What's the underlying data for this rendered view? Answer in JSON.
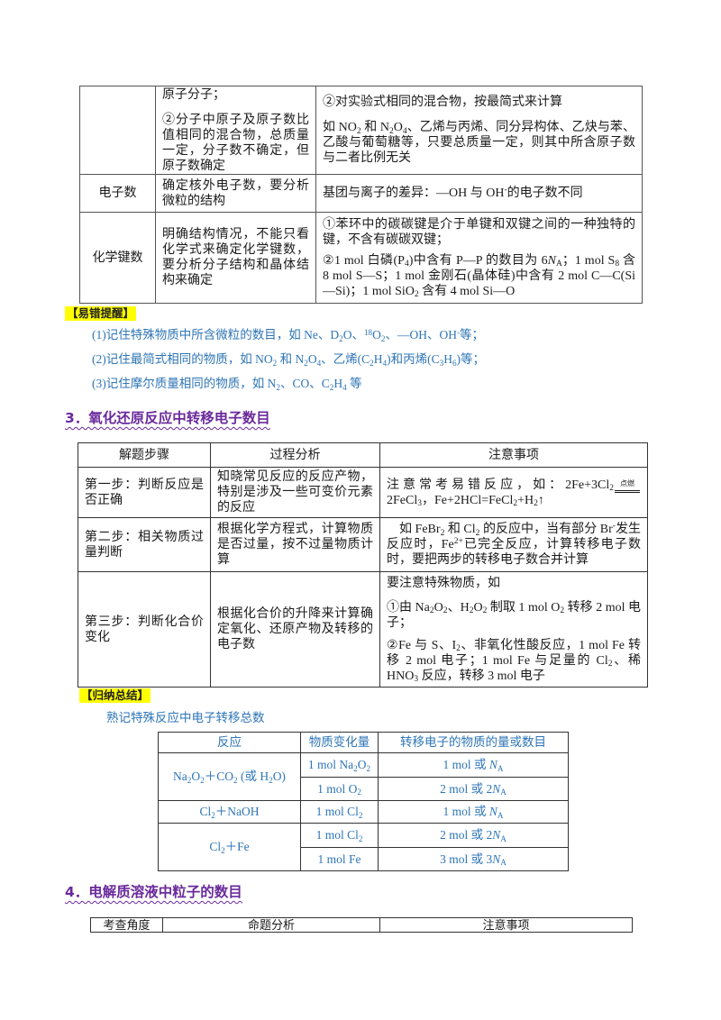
{
  "colors": {
    "heading_purple": "#6A2A9C",
    "note_blue": "#2E75B6",
    "label_yellow": "#FFFF00"
  },
  "table1": {
    "row_atoms": {
      "analysis_p1": "原子分子；",
      "analysis_p2": "②分子中原子及原子数比值相同的混合物，总质量一定，分子数不确定，但原子数确定",
      "notes_p1": "②对实验式相同的混合物，按最简式来计算",
      "notes_p2": [
        "如 NO",
        {
          "sub": "2"
        },
        " 和 N",
        {
          "sub": "2"
        },
        "O",
        {
          "sub": "4"
        },
        "、乙烯与丙烯、同分异构体、乙炔与苯、乙酸与葡萄糖等，只要总质量一定，则其中所含原子数与二者比例无关"
      ]
    },
    "row_electrons": {
      "label": "电子数",
      "analysis": "确定核外电子数，要分析微粒的结构",
      "notes": [
        "基团与离子的差异：—OH 与 OH",
        {
          "sup": "-"
        },
        "的电子数不同"
      ]
    },
    "row_bonds": {
      "label": "化学键数",
      "analysis": "明确结构情况，不能只看化学式来确定化学键数，要分析分子结构和晶体结构来确定",
      "notes_p1": "①苯环中的碳碳键是介于单键和双键之间的一种独特的键，不含有碳碳双键；",
      "notes_p2": [
        "②1 mol 白磷(P",
        {
          "sub": "4"
        },
        ")中含有 P—P 的数目为 6",
        {
          "i": "N"
        },
        {
          "sub": "A"
        },
        "；1 mol S",
        {
          "sub": "8"
        },
        " 含 8 mol S—S；1 mol 金刚石(晶体硅)中含有 2 mol C—C(Si—Si)；1 mol SiO",
        {
          "sub": "2"
        },
        " 含有 4 mol Si—O"
      ]
    }
  },
  "mistake_tips": {
    "label": "【易错提醒】",
    "items": [
      [
        "(1)记住特殊物质中所含微粒的数目，如 Ne、D",
        {
          "sub": "2"
        },
        "O、",
        {
          "sup": "18"
        },
        "O",
        {
          "sub": "2"
        },
        "、—OH、OH",
        {
          "sup": "-"
        },
        "等；"
      ],
      [
        "(2)记住最简式相同的物质，如 NO",
        {
          "sub": "2"
        },
        " 和 N",
        {
          "sub": "2"
        },
        "O",
        {
          "sub": "4"
        },
        "、乙烯(C",
        {
          "sub": "2"
        },
        "H",
        {
          "sub": "4"
        },
        ")和丙烯(C",
        {
          "sub": "3"
        },
        "H",
        {
          "sub": "6"
        },
        ")等；"
      ],
      [
        "(3)记住摩尔质量相同的物质，如 N",
        {
          "sub": "2"
        },
        "、CO、C",
        {
          "sub": "2"
        },
        "H",
        {
          "sub": "4"
        },
        " 等"
      ]
    ]
  },
  "section3": {
    "title": "3．氧化还原反应中转移电子数目",
    "headers": [
      "解题步骤",
      "过程分析",
      "注意事项"
    ],
    "rows": [
      {
        "step": "第一步：判断反应是否正确",
        "analysis": "知晓常见反应的反应产物，特别是涉及一些可变价元素的反应",
        "notes": [
          [
            "注意常考易错反应，如：2Fe+3Cl",
            {
              "sub": "2"
            },
            {
              "ov": "点燃"
            },
            "2FeCl",
            {
              "sub": "3"
            },
            "，Fe+2HCl=FeCl",
            {
              "sub": "2"
            },
            "+H",
            {
              "sub": "2"
            },
            "↑"
          ]
        ]
      },
      {
        "step": "第二步：相关物质过量判断",
        "analysis": "根据化学方程式，计算物质是否过量，按不过量物质计算",
        "notes": [
          [
            "如 FeBr",
            {
              "sub": "2"
            },
            " 和 Cl",
            {
              "sub": "2"
            },
            " 的反应中，当有部分 Br",
            {
              "sup": "-"
            },
            "发生反应时，Fe",
            {
              "sup": "2+"
            },
            "已完全反应，计算转移电子数时，要把两步的转移电子数合并计算"
          ]
        ]
      },
      {
        "step": "第三步：判断化合价变化",
        "analysis": "根据化合价的升降来计算确定氧化、还原产物及转移的电子数",
        "notes": [
          "要注意特殊物质，如",
          [
            "①由 Na",
            {
              "sub": "2"
            },
            "O",
            {
              "sub": "2"
            },
            "、H",
            {
              "sub": "2"
            },
            "O",
            {
              "sub": "2"
            },
            " 制取 1 mol O",
            {
              "sub": "2"
            },
            " 转移 2 mol 电子；"
          ],
          [
            "②Fe 与 S、I",
            {
              "sub": "2"
            },
            "、非氧化性酸反应，1 mol Fe 转移 2 mol 电子；1 mol Fe 与足量的 Cl",
            {
              "sub": "2"
            },
            "、稀 HNO",
            {
              "sub": "3"
            },
            " 反应，转移 3 mol 电子"
          ]
        ]
      }
    ]
  },
  "summary": {
    "label": "【归纳总结】",
    "intro": "熟记特殊反应中电子转移总数",
    "headers": [
      "反应",
      "物质变化量",
      "转移电子的物质的量或数目"
    ],
    "groups": [
      {
        "reaction": [
          "Na",
          {
            "sub": "2"
          },
          "O",
          {
            "sub": "2"
          },
          "＋CO",
          {
            "sub": "2"
          },
          " (或 H",
          {
            "sub": "2"
          },
          "O)"
        ],
        "items": [
          {
            "change": [
              "1 mol Na",
              {
                "sub": "2"
              },
              "O",
              {
                "sub": "2"
              }
            ],
            "transfer": [
              "1 mol 或 ",
              {
                "i": "N"
              },
              {
                "sub": "A"
              }
            ]
          },
          {
            "change": [
              "1 mol O",
              {
                "sub": "2"
              }
            ],
            "transfer": [
              "2 mol 或 2",
              {
                "i": "N"
              },
              {
                "sub": "A"
              }
            ]
          }
        ]
      },
      {
        "reaction": [
          "Cl",
          {
            "sub": "2"
          },
          "＋NaOH"
        ],
        "items": [
          {
            "change": [
              "1 mol Cl",
              {
                "sub": "2"
              }
            ],
            "transfer": [
              "1 mol 或 ",
              {
                "i": "N"
              },
              {
                "sub": "A"
              }
            ]
          }
        ]
      },
      {
        "reaction": [
          "Cl",
          {
            "sub": "2"
          },
          "＋Fe"
        ],
        "items": [
          {
            "change": [
              "1 mol Cl",
              {
                "sub": "2"
              }
            ],
            "transfer": [
              "2 mol 或 2",
              {
                "i": "N"
              },
              {
                "sub": "A"
              }
            ]
          },
          {
            "change": "1 mol Fe",
            "transfer": [
              "3 mol 或 3",
              {
                "i": "N"
              },
              {
                "sub": "A"
              }
            ]
          }
        ]
      }
    ]
  },
  "section4": {
    "title": "4．电解质溶液中粒子的数目",
    "headers": [
      "考查角度",
      "命题分析",
      "注意事项"
    ]
  }
}
